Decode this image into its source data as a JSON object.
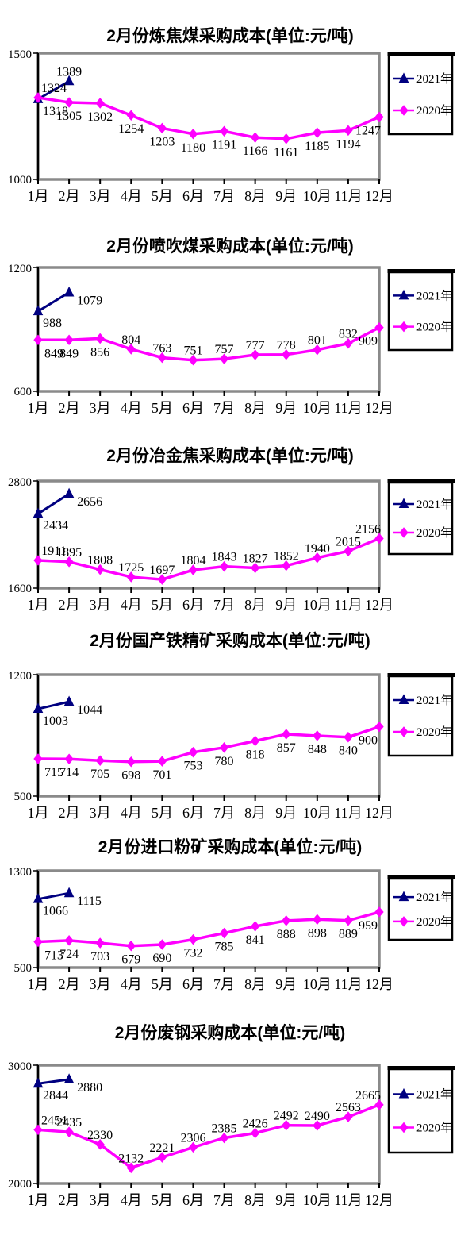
{
  "page": {
    "background": "#ffffff"
  },
  "months": [
    "1月",
    "2月",
    "3月",
    "4月",
    "5月",
    "6月",
    "7月",
    "8月",
    "9月",
    "10月",
    "11月",
    "12月"
  ],
  "colors": {
    "series2021": "#000080",
    "series2020": "#FF00FF",
    "plot_border": "#8a8a8a",
    "axis": "#000000",
    "text": "#000000",
    "legend_border": "#000000"
  },
  "legend": {
    "entries": [
      "2021年",
      "2020年"
    ],
    "position": "right"
  },
  "chart_data": [
    {
      "type": "line",
      "title": "2月份炼焦煤采购成本(单位:元/吨)",
      "ylim": [
        1000,
        1500
      ],
      "ytick_labels": [
        "1500",
        "1000"
      ],
      "categories": [
        "1月",
        "2月",
        "3月",
        "4月",
        "5月",
        "6月",
        "7月",
        "8月",
        "9月",
        "10月",
        "11月",
        "12月"
      ],
      "series": [
        {
          "name": "2021年",
          "color": "#000080",
          "marker": "triangle",
          "values": [
            1318,
            1389
          ],
          "label_pos": [
            "below-right",
            "above"
          ]
        },
        {
          "name": "2020年",
          "color": "#FF00FF",
          "marker": "diamond",
          "values": [
            1324,
            1305,
            1302,
            1254,
            1203,
            1180,
            1191,
            1166,
            1161,
            1185,
            1194,
            1247
          ],
          "label_pos": [
            "above",
            "below",
            "below",
            "below",
            "below",
            "below",
            "below",
            "below",
            "below",
            "below",
            "below",
            "below"
          ]
        }
      ],
      "legend_position": "right",
      "grid": false
    },
    {
      "type": "line",
      "title": "2月份喷吹煤采购成本(单位:元/吨)",
      "ylim": [
        600,
        1200
      ],
      "ytick_labels": [
        "1200",
        "600"
      ],
      "categories": [
        "1月",
        "2月",
        "3月",
        "4月",
        "5月",
        "6月",
        "7月",
        "8月",
        "9月",
        "10月",
        "11月",
        "12月"
      ],
      "series": [
        {
          "name": "2021年",
          "color": "#000080",
          "marker": "triangle",
          "values": [
            988,
            1079
          ],
          "label_pos": [
            "below-right",
            "right-below"
          ]
        },
        {
          "name": "2020年",
          "color": "#FF00FF",
          "marker": "diamond",
          "values": [
            849,
            849,
            856,
            804,
            763,
            751,
            757,
            777,
            778,
            801,
            832,
            909
          ],
          "label_pos": [
            "below",
            "below",
            "below",
            "above",
            "above",
            "above",
            "above",
            "above",
            "above",
            "above",
            "above",
            "below"
          ]
        }
      ],
      "legend_position": "right",
      "grid": false
    },
    {
      "type": "line",
      "title": "2月份冶金焦采购成本(单位:元/吨)",
      "ylim": [
        1600,
        2800
      ],
      "ytick_labels": [
        "2800",
        "1600"
      ],
      "categories": [
        "1月",
        "2月",
        "3月",
        "4月",
        "5月",
        "6月",
        "7月",
        "8月",
        "9月",
        "10月",
        "11月",
        "12月"
      ],
      "series": [
        {
          "name": "2021年",
          "color": "#000080",
          "marker": "triangle",
          "values": [
            2434,
            2656
          ],
          "label_pos": [
            "below-right",
            "right-below"
          ]
        },
        {
          "name": "2020年",
          "color": "#FF00FF",
          "marker": "diamond",
          "values": [
            1911,
            1895,
            1808,
            1725,
            1697,
            1804,
            1843,
            1827,
            1852,
            1940,
            2015,
            2156
          ],
          "label_pos": [
            "above",
            "above",
            "above",
            "above",
            "above",
            "above",
            "above",
            "above",
            "above",
            "above",
            "above",
            "above"
          ]
        }
      ],
      "legend_position": "right",
      "grid": false
    },
    {
      "type": "line",
      "title": "2月份国产铁精矿采购成本(单位:元/吨)",
      "ylim": [
        500,
        1200
      ],
      "ytick_labels": [
        "1200",
        "500"
      ],
      "categories": [
        "1月",
        "2月",
        "3月",
        "4月",
        "5月",
        "6月",
        "7月",
        "8月",
        "9月",
        "10月",
        "11月",
        "12月"
      ],
      "series": [
        {
          "name": "2021年",
          "color": "#000080",
          "marker": "triangle",
          "values": [
            1003,
            1044
          ],
          "label_pos": [
            "below-right",
            "right-below"
          ]
        },
        {
          "name": "2020年",
          "color": "#FF00FF",
          "marker": "diamond",
          "values": [
            715,
            714,
            705,
            698,
            701,
            753,
            780,
            818,
            857,
            848,
            840,
            900
          ],
          "label_pos": [
            "below",
            "below",
            "below",
            "below",
            "below",
            "below",
            "below",
            "below",
            "below",
            "below",
            "below",
            "below"
          ]
        }
      ],
      "legend_position": "right",
      "grid": false
    },
    {
      "type": "line",
      "title": "2月份进口粉矿采购成本(单位:元/吨)",
      "ylim": [
        500,
        1300
      ],
      "ytick_labels": [
        "1300",
        "500"
      ],
      "categories": [
        "1月",
        "2月",
        "3月",
        "4月",
        "5月",
        "6月",
        "7月",
        "8月",
        "9月",
        "10月",
        "11月",
        "12月"
      ],
      "series": [
        {
          "name": "2021年",
          "color": "#000080",
          "marker": "triangle",
          "values": [
            1066,
            1115
          ],
          "label_pos": [
            "below-right",
            "right-below"
          ]
        },
        {
          "name": "2020年",
          "color": "#FF00FF",
          "marker": "diamond",
          "values": [
            713,
            724,
            703,
            679,
            690,
            732,
            785,
            841,
            888,
            898,
            889,
            959
          ],
          "label_pos": [
            "below",
            "below",
            "below",
            "below",
            "below",
            "below",
            "below",
            "below",
            "below",
            "below",
            "below",
            "below"
          ]
        }
      ],
      "legend_position": "right",
      "grid": false
    },
    {
      "type": "line",
      "title": "2月份废钢采购成本(单位:元/吨)",
      "ylim": [
        2000,
        3000
      ],
      "ytick_labels": [
        "3000",
        "2000"
      ],
      "categories": [
        "1月",
        "2月",
        "3月",
        "4月",
        "5月",
        "6月",
        "7月",
        "8月",
        "9月",
        "10月",
        "11月",
        "12月"
      ],
      "series": [
        {
          "name": "2021年",
          "color": "#000080",
          "marker": "triangle",
          "values": [
            2844,
            2880
          ],
          "label_pos": [
            "below-right",
            "right-below"
          ]
        },
        {
          "name": "2020年",
          "color": "#FF00FF",
          "marker": "diamond",
          "values": [
            2454,
            2435,
            2330,
            2132,
            2221,
            2306,
            2385,
            2426,
            2492,
            2490,
            2563,
            2665
          ],
          "label_pos": [
            "above",
            "above",
            "above",
            "above",
            "above",
            "above",
            "above",
            "above",
            "above",
            "above",
            "above",
            "above"
          ]
        }
      ],
      "legend_position": "right",
      "grid": false
    }
  ]
}
